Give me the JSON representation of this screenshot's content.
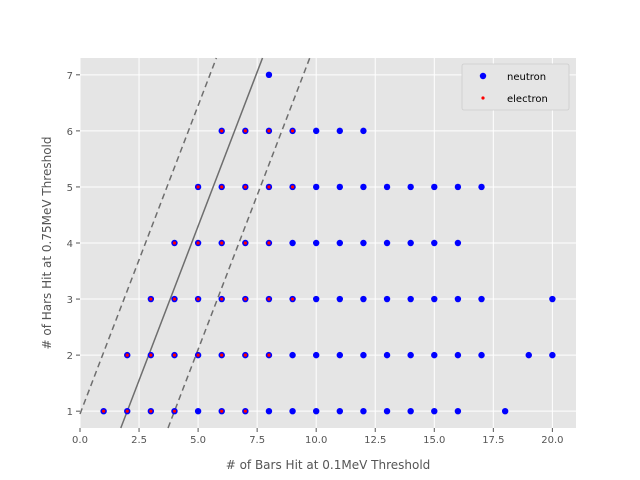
{
  "chart_data": {
    "type": "scatter",
    "title": "",
    "xlabel": "# of Bars Hit at 0.1MeV Threshold",
    "ylabel": "# of Hars Hit at 0.75MeV Threshold",
    "xlim": [
      0,
      21
    ],
    "ylim": [
      0.7,
      7.3
    ],
    "xticks": [
      0.0,
      2.5,
      5.0,
      7.5,
      10.0,
      12.5,
      15.0,
      17.5,
      20.0
    ],
    "xtick_labels": [
      "0.0",
      "2.5",
      "5.0",
      "7.5",
      "10.0",
      "12.5",
      "15.0",
      "17.5",
      "20.0"
    ],
    "yticks": [
      1,
      2,
      3,
      4,
      5,
      6,
      7
    ],
    "ytick_labels": [
      "1",
      "2",
      "3",
      "4",
      "5",
      "6",
      "7"
    ],
    "grid": true,
    "legend_position": "top-right",
    "series": [
      {
        "name": "neutron",
        "color": "#0000ff",
        "marker": "circle",
        "points": [
          [
            1,
            1
          ],
          [
            2,
            1
          ],
          [
            3,
            1
          ],
          [
            4,
            1
          ],
          [
            5,
            1
          ],
          [
            6,
            1
          ],
          [
            7,
            1
          ],
          [
            8,
            1
          ],
          [
            9,
            1
          ],
          [
            10,
            1
          ],
          [
            11,
            1
          ],
          [
            12,
            1
          ],
          [
            13,
            1
          ],
          [
            14,
            1
          ],
          [
            15,
            1
          ],
          [
            16,
            1
          ],
          [
            18,
            1
          ],
          [
            2,
            2
          ],
          [
            3,
            2
          ],
          [
            4,
            2
          ],
          [
            5,
            2
          ],
          [
            6,
            2
          ],
          [
            7,
            2
          ],
          [
            8,
            2
          ],
          [
            9,
            2
          ],
          [
            10,
            2
          ],
          [
            11,
            2
          ],
          [
            12,
            2
          ],
          [
            13,
            2
          ],
          [
            14,
            2
          ],
          [
            15,
            2
          ],
          [
            16,
            2
          ],
          [
            17,
            2
          ],
          [
            19,
            2
          ],
          [
            20,
            2
          ],
          [
            3,
            3
          ],
          [
            4,
            3
          ],
          [
            5,
            3
          ],
          [
            6,
            3
          ],
          [
            7,
            3
          ],
          [
            8,
            3
          ],
          [
            9,
            3
          ],
          [
            10,
            3
          ],
          [
            11,
            3
          ],
          [
            12,
            3
          ],
          [
            13,
            3
          ],
          [
            14,
            3
          ],
          [
            15,
            3
          ],
          [
            16,
            3
          ],
          [
            17,
            3
          ],
          [
            20,
            3
          ],
          [
            4,
            4
          ],
          [
            5,
            4
          ],
          [
            6,
            4
          ],
          [
            7,
            4
          ],
          [
            8,
            4
          ],
          [
            9,
            4
          ],
          [
            10,
            4
          ],
          [
            11,
            4
          ],
          [
            12,
            4
          ],
          [
            13,
            4
          ],
          [
            14,
            4
          ],
          [
            15,
            4
          ],
          [
            16,
            4
          ],
          [
            5,
            5
          ],
          [
            6,
            5
          ],
          [
            7,
            5
          ],
          [
            8,
            5
          ],
          [
            9,
            5
          ],
          [
            10,
            5
          ],
          [
            11,
            5
          ],
          [
            12,
            5
          ],
          [
            13,
            5
          ],
          [
            14,
            5
          ],
          [
            15,
            5
          ],
          [
            16,
            5
          ],
          [
            17,
            5
          ],
          [
            6,
            6
          ],
          [
            7,
            6
          ],
          [
            8,
            6
          ],
          [
            9,
            6
          ],
          [
            10,
            6
          ],
          [
            11,
            6
          ],
          [
            12,
            6
          ],
          [
            8,
            7
          ]
        ]
      },
      {
        "name": "electron",
        "color": "#ff0000",
        "marker": "point",
        "points": [
          [
            1,
            1
          ],
          [
            2,
            1
          ],
          [
            3,
            1
          ],
          [
            4,
            1
          ],
          [
            6,
            1
          ],
          [
            7,
            1
          ],
          [
            2,
            2
          ],
          [
            3,
            2
          ],
          [
            4,
            2
          ],
          [
            5,
            2
          ],
          [
            6,
            2
          ],
          [
            7,
            2
          ],
          [
            8,
            2
          ],
          [
            3,
            3
          ],
          [
            4,
            3
          ],
          [
            5,
            3
          ],
          [
            6,
            3
          ],
          [
            7,
            3
          ],
          [
            8,
            3
          ],
          [
            9,
            3
          ],
          [
            4,
            4
          ],
          [
            5,
            4
          ],
          [
            6,
            4
          ],
          [
            7,
            4
          ],
          [
            8,
            4
          ],
          [
            5,
            5
          ],
          [
            6,
            5
          ],
          [
            7,
            5
          ],
          [
            8,
            5
          ],
          [
            9,
            5
          ],
          [
            6,
            6
          ],
          [
            7,
            6
          ],
          [
            8,
            6
          ],
          [
            9,
            6
          ]
        ]
      }
    ],
    "reference_lines": [
      {
        "style": "solid",
        "color": "#6e6e6e",
        "slope": 1.1,
        "intercept": -1.2
      },
      {
        "style": "dashed",
        "color": "#6e6e6e",
        "slope": 1.1,
        "intercept": 0.95
      },
      {
        "style": "dashed",
        "color": "#6e6e6e",
        "slope": 1.1,
        "intercept": -3.4
      }
    ]
  }
}
